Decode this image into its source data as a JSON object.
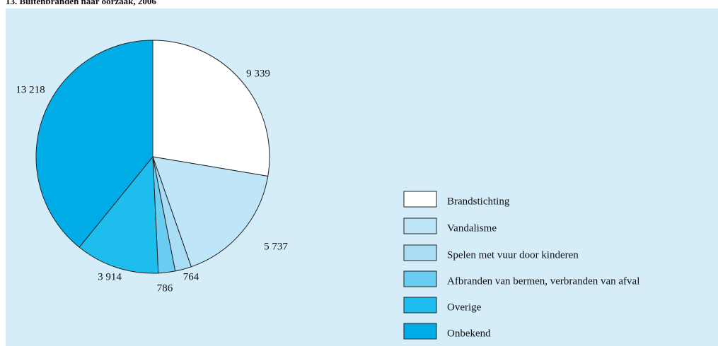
{
  "chart_data": {
    "type": "pie",
    "title": "13. Buitenbranden naar oorzaak, 2006",
    "series": [
      {
        "name": "Brandstichting",
        "color": "#ffffff",
        "values": [
          9339
        ],
        "value_labels": [
          "9 339"
        ]
      },
      {
        "name": "Vandalisme",
        "color": "#bfe6f8",
        "values": [
          5737
        ],
        "value_labels": [
          "5 737"
        ]
      },
      {
        "name": "Spelen met vuur door kinderen",
        "color": "#a9dcf5",
        "values": [
          764
        ],
        "value_labels": [
          "764"
        ]
      },
      {
        "name": "Afbranden van bermen, verbranden van afval",
        "color": "#6ccdf2",
        "values": [
          786
        ],
        "value_labels": [
          "786"
        ]
      },
      {
        "name": "Overige",
        "color": "#1dbdee",
        "values": [
          3914
        ],
        "value_labels": [
          "3 914"
        ]
      },
      {
        "name": "Onbekend",
        "color": "#00acE6",
        "values": [
          13218
        ],
        "value_labels": [
          "13 218"
        ]
      }
    ]
  }
}
